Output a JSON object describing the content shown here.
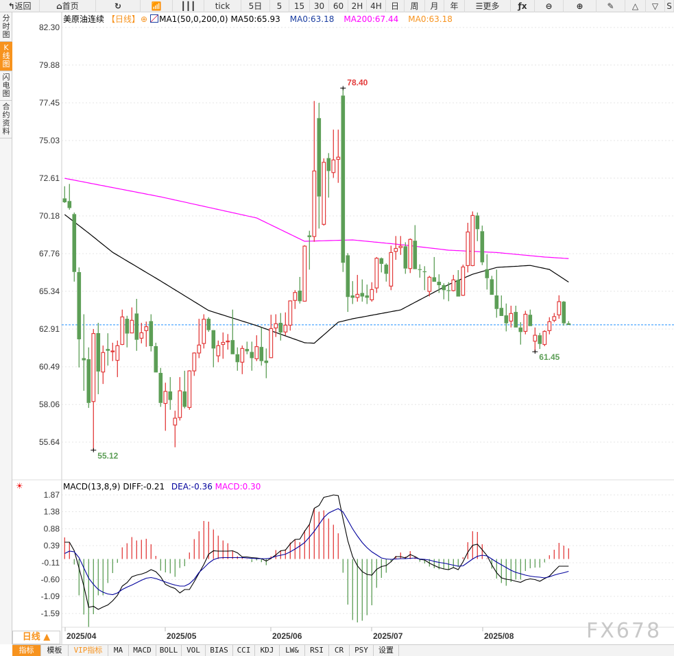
{
  "toolbar": {
    "items": [
      {
        "label": "返回",
        "icon": "back-arrow-icon"
      },
      {
        "label": "首页",
        "icon": "home-icon"
      },
      {
        "label": "",
        "icon": "refresh-icon"
      },
      {
        "label": "",
        "icon": "indicator-chart-icon"
      },
      {
        "label": "",
        "icon": "candlestick-icon"
      },
      {
        "label": "tick"
      },
      {
        "label": "5日"
      },
      {
        "label": "5"
      },
      {
        "label": "15"
      },
      {
        "label": "30"
      },
      {
        "label": "60"
      },
      {
        "label": "2H"
      },
      {
        "label": "4H"
      },
      {
        "label": "日"
      },
      {
        "label": "周"
      },
      {
        "label": "月"
      },
      {
        "label": "年"
      },
      {
        "label": "更多",
        "icon": "menu-icon"
      },
      {
        "label": "",
        "icon": "fx-icon"
      },
      {
        "label": "",
        "icon": "zoom-out-icon"
      },
      {
        "label": "",
        "icon": "zoom-in-icon"
      },
      {
        "label": "",
        "icon": "pen-icon"
      },
      {
        "label": "",
        "icon": "triangle-up-icon"
      },
      {
        "label": "",
        "icon": "triangle-down-icon"
      },
      {
        "label": "S"
      }
    ]
  },
  "sidetabs": [
    {
      "label": "分时图",
      "active": false
    },
    {
      "label": "K线图",
      "active": true
    },
    {
      "label": "闪电图",
      "active": false
    },
    {
      "label": "合约资料",
      "active": false
    }
  ],
  "legend": {
    "symbol": "美原油连续",
    "period": "【日线】",
    "ma_def": "MA1(50,0,200,0)",
    "ma50": "MA50:65.93",
    "ma0a": "MA0:63.18",
    "ma200": "MA200:67.44",
    "ma0b": "MA0:63.18"
  },
  "macd_legend": {
    "name": "MACD(13,8,9)",
    "diff": "DIFF:-0.21",
    "dea": "DEA:-0.36",
    "macd": "MACD:0.30"
  },
  "period_selector": "日线 ▲",
  "bottom_tabs": [
    "指标",
    "模板",
    "VIP指标",
    "MA",
    "MACD",
    "BOLL",
    "VOL",
    "BIAS",
    "CCI",
    "KDJ",
    "LW&",
    "RSI",
    "CR",
    "PSY",
    "设置"
  ],
  "watermark": "FX678",
  "colors": {
    "up": "#e23b3b",
    "down": "#5c9e56",
    "ma50": "#000000",
    "ma200": "#ff00ff",
    "dea": "#00009c",
    "last_price": "#1e90ff",
    "accent": "#f7931e"
  },
  "chart_data": [
    {
      "type": "candlestick",
      "title": "美原油连续",
      "ylim": [
        55.64,
        82.3
      ],
      "y_ticks": [
        "82.30",
        "79.88",
        "77.45",
        "75.03",
        "72.61",
        "70.18",
        "67.76",
        "65.34",
        "62.91",
        "60.49",
        "58.06",
        "55.64"
      ],
      "x_ticks": [
        "2025/04",
        "2025/05",
        "2025/06",
        "2025/07",
        "2025/08"
      ],
      "last_price": 63.18,
      "annotations": {
        "high": "78.40",
        "low": "55.12",
        "recent_low": "61.45"
      },
      "ohlc": [
        [
          71.31,
          72.09,
          71.02,
          71.06
        ],
        [
          71.14,
          72.24,
          70.58,
          70.69
        ],
        [
          70.3,
          70.4,
          65.96,
          66.58
        ],
        [
          66.57,
          66.87,
          60.44,
          62.25
        ],
        [
          61.04,
          63.86,
          58.94,
          60.9
        ],
        [
          60.97,
          61.73,
          57.84,
          58.16
        ],
        [
          58.25,
          62.91,
          55.12,
          62.62
        ],
        [
          62.65,
          63.31,
          58.72,
          60.18
        ],
        [
          60.15,
          61.85,
          59.38,
          61.4
        ],
        [
          61.63,
          62.64,
          60.56,
          61.51
        ],
        [
          61.48,
          62.03,
          60.85,
          61.5
        ],
        [
          60.9,
          62.17,
          59.82,
          61.84
        ],
        [
          61.92,
          64.16,
          61.88,
          63.69
        ],
        [
          63.57,
          63.76,
          61.73,
          62.62
        ],
        [
          62.66,
          64.3,
          62.66,
          63.47
        ],
        [
          63.91,
          64.85,
          61.51,
          62.22
        ],
        [
          62.32,
          63.31,
          61.99,
          62.67
        ],
        [
          62.81,
          63.39,
          61.77,
          63.06
        ],
        [
          63.42,
          63.86,
          61.47,
          61.81
        ],
        [
          61.81,
          62.03,
          60.12,
          60.12
        ],
        [
          60.09,
          60.41,
          57.91,
          58.16
        ],
        [
          58.13,
          59.46,
          56.37,
          58.9
        ],
        [
          58.9,
          59.82,
          57.72,
          58.35
        ],
        [
          56.74,
          57.66,
          55.31,
          57.18
        ],
        [
          57.22,
          59.82,
          57.03,
          58.94
        ],
        [
          58.9,
          60.23,
          57.81,
          57.91
        ],
        [
          57.87,
          60.26,
          57.72,
          60.22
        ],
        [
          60.22,
          61.41,
          59.9,
          61.37
        ],
        [
          61.37,
          63.57,
          61.04,
          61.88
        ],
        [
          61.98,
          63.86,
          61.66,
          63.54
        ],
        [
          63.57,
          63.67,
          62.73,
          62.84
        ],
        [
          62.84,
          62.84,
          60.45,
          61.66
        ],
        [
          61.19,
          62.17,
          60.78,
          61.84
        ],
        [
          61.92,
          62.69,
          61.0,
          62.05
        ],
        [
          62.1,
          62.59,
          61.59,
          62.14
        ],
        [
          62.2,
          64.16,
          61.29,
          61.29
        ],
        [
          61.29,
          61.73,
          60.23,
          60.78
        ],
        [
          60.78,
          61.85,
          60.01,
          61.66
        ],
        [
          61.63,
          62.1,
          61.29,
          61.48
        ],
        [
          61.44,
          62.1,
          60.23,
          61.04
        ],
        [
          61.0,
          62.51,
          60.85,
          61.78
        ],
        [
          61.76,
          63.01,
          60.56,
          60.85
        ],
        [
          60.88,
          61.66,
          59.75,
          60.73
        ],
        [
          61.07,
          63.83,
          61.04,
          62.94
        ],
        [
          62.98,
          63.86,
          62.4,
          63.25
        ],
        [
          63.31,
          63.94,
          62.17,
          62.69
        ],
        [
          62.72,
          63.98,
          62.5,
          63.16
        ],
        [
          63.16,
          64.75,
          62.81,
          64.72
        ],
        [
          64.75,
          65.41,
          64.2,
          65.26
        ],
        [
          65.38,
          66.26,
          64.55,
          64.7
        ],
        [
          64.7,
          68.3,
          64.67,
          68.24
        ],
        [
          68.93,
          69.23,
          66.73,
          68.82
        ],
        [
          68.86,
          77.57,
          68.52,
          73.07
        ],
        [
          76.47,
          77.45,
          69.37,
          71.43
        ],
        [
          69.64,
          73.88,
          69.56,
          73.63
        ],
        [
          73.9,
          74.22,
          71.36,
          73.07
        ],
        [
          72.97,
          75.73,
          72.63,
          73.78
        ],
        [
          73.82,
          75.73,
          72.31,
          73.96
        ],
        [
          77.92,
          78.4,
          66.58,
          67.17
        ],
        [
          67.65,
          67.79,
          64.01,
          64.97
        ],
        [
          65.07,
          65.99,
          64.52,
          64.92
        ],
        [
          64.94,
          66.39,
          64.67,
          65.14
        ],
        [
          65.23,
          66.1,
          64.67,
          65.0
        ],
        [
          65.07,
          65.77,
          64.52,
          64.92
        ],
        [
          64.79,
          65.92,
          64.67,
          65.45
        ],
        [
          65.55,
          67.54,
          65.23,
          67.46
        ],
        [
          67.46,
          67.51,
          66.55,
          67.1
        ],
        [
          67.05,
          67.13,
          65.96,
          66.46
        ],
        [
          65.67,
          68.27,
          65.41,
          67.83
        ],
        [
          67.9,
          68.89,
          67.36,
          68.09
        ],
        [
          68.15,
          68.89,
          67.68,
          68.24
        ],
        [
          68.23,
          68.49,
          66.46,
          66.8
        ],
        [
          66.8,
          68.74,
          66.51,
          68.67
        ],
        [
          68.59,
          69.59,
          66.76,
          66.76
        ],
        [
          66.76,
          67.07,
          66.21,
          66.72
        ],
        [
          66.62,
          66.95,
          65.41,
          66.6
        ],
        [
          65.33,
          66.33,
          65.01,
          66.24
        ],
        [
          66.24,
          67.54,
          65.95,
          65.95
        ],
        [
          65.95,
          66.43,
          65.23,
          65.73
        ],
        [
          65.73,
          65.85,
          64.82,
          65.41
        ],
        [
          65.41,
          65.92,
          64.7,
          65.38
        ],
        [
          65.38,
          66.39,
          65.33,
          66.07
        ],
        [
          66.07,
          66.7,
          65.0,
          65.0
        ],
        [
          65.08,
          67.05,
          65.04,
          66.9
        ],
        [
          66.99,
          69.74,
          66.55,
          69.15
        ],
        [
          66.99,
          70.47,
          66.95,
          70.21
        ],
        [
          70.21,
          70.4,
          68.56,
          69.33
        ],
        [
          69.2,
          69.56,
          67.02,
          67.2
        ],
        [
          66.76,
          67.71,
          65.45,
          66.18
        ],
        [
          66.11,
          66.33,
          65.11,
          65.11
        ],
        [
          65.07,
          66.73,
          63.64,
          64.2
        ],
        [
          64.27,
          65.07,
          63.75,
          63.75
        ],
        [
          63.79,
          64.55,
          62.76,
          63.28
        ],
        [
          63.42,
          64.41,
          63.01,
          63.91
        ],
        [
          64.01,
          64.41,
          63.01,
          63.01
        ],
        [
          63.01,
          63.35,
          61.91,
          62.72
        ],
        [
          62.76,
          64.08,
          62.57,
          63.86
        ],
        [
          63.83,
          64.16,
          63.1,
          63.1
        ],
        [
          62.13,
          63.01,
          61.45,
          62.51
        ],
        [
          62.51,
          62.66,
          61.63,
          61.95
        ],
        [
          61.92,
          62.83,
          61.81,
          62.76
        ],
        [
          62.81,
          63.67,
          62.57,
          63.38
        ],
        [
          63.47,
          63.94,
          63.35,
          63.71
        ],
        [
          63.82,
          65.08,
          63.57,
          64.67
        ],
        [
          64.67,
          64.71,
          63.13,
          63.28
        ],
        [
          63.28,
          63.42,
          63.17,
          63.17
        ]
      ],
      "ma_series": [
        {
          "name": "MA50",
          "points": [
            [
              0,
              70.27
            ],
            [
              5,
              69.08
            ],
            [
              10,
              67.84
            ],
            [
              20,
              66.0
            ],
            [
              30,
              64.1
            ],
            [
              40,
              63.13
            ],
            [
              50,
              62.03
            ],
            [
              52,
              62.0
            ],
            [
              57,
              63.35
            ],
            [
              60,
              63.57
            ],
            [
              70,
              64.14
            ],
            [
              80,
              65.77
            ],
            [
              85,
              66.43
            ],
            [
              90,
              66.87
            ],
            [
              97,
              67.0
            ],
            [
              101,
              66.74
            ],
            [
              105,
              65.93
            ]
          ]
        },
        {
          "name": "MA200",
          "points": [
            [
              0,
              72.6
            ],
            [
              20,
              71.41
            ],
            [
              40,
              70.05
            ],
            [
              50,
              68.55
            ],
            [
              60,
              68.64
            ],
            [
              70,
              68.34
            ],
            [
              80,
              67.98
            ],
            [
              90,
              67.83
            ],
            [
              100,
              67.54
            ],
            [
              105,
              67.44
            ]
          ]
        }
      ]
    },
    {
      "type": "macd",
      "title": "MACD(13,8,9)",
      "ylim": [
        -1.59,
        1.87
      ],
      "y_ticks": [
        "1.87",
        "1.38",
        "0.88",
        "0.39",
        "-0.11",
        "-0.60",
        "-1.09",
        "-1.59"
      ],
      "diff": [
        0.49,
        0.49,
        0.24,
        -0.27,
        -0.79,
        -1.41,
        -1.38,
        -1.47,
        -1.4,
        -1.34,
        -1.22,
        -1.06,
        -0.79,
        -0.69,
        -0.52,
        -0.47,
        -0.44,
        -0.39,
        -0.31,
        -0.37,
        -0.52,
        -0.74,
        -0.81,
        -0.86,
        -0.99,
        -0.89,
        -0.89,
        -0.66,
        -0.41,
        -0.16,
        0.14,
        0.24,
        0.23,
        0.23,
        0.23,
        0.24,
        0.18,
        0.06,
        0.06,
        0.04,
        0.03,
        0.01,
        -0.06,
        0.02,
        0.12,
        0.24,
        0.26,
        0.44,
        0.57,
        0.58,
        0.81,
        1.01,
        1.48,
        1.56,
        1.8,
        1.83,
        1.87,
        1.85,
        1.17,
        0.53,
        0.07,
        -0.2,
        -0.37,
        -0.45,
        -0.47,
        -0.3,
        -0.22,
        -0.19,
        -0.08,
        0.07,
        0.07,
        0.03,
        0.13,
        0.07,
        -0.01,
        -0.03,
        -0.12,
        -0.19,
        -0.25,
        -0.29,
        -0.31,
        -0.25,
        -0.31,
        -0.08,
        0.2,
        0.4,
        0.43,
        0.27,
        0.1,
        -0.17,
        -0.4,
        -0.55,
        -0.59,
        -0.61,
        -0.65,
        -0.68,
        -0.61,
        -0.58,
        -0.6,
        -0.65,
        -0.57,
        -0.5,
        -0.35,
        -0.21,
        -0.21,
        -0.21
      ],
      "dea": [
        0.16,
        0.23,
        0.21,
        0.04,
        -0.26,
        -0.56,
        -0.74,
        -0.89,
        -0.97,
        -1.02,
        -1.04,
        -0.99,
        -0.89,
        -0.82,
        -0.76,
        -0.69,
        -0.62,
        -0.56,
        -0.54,
        -0.57,
        -0.62,
        -0.67,
        -0.72,
        -0.76,
        -0.79,
        -0.79,
        -0.72,
        -0.59,
        -0.39,
        -0.26,
        -0.12,
        -0.02,
        0.03,
        0.04,
        0.04,
        0.04,
        0.04,
        0.04,
        0.03,
        0.02,
        0.01,
        0.01,
        0.01,
        0.03,
        0.08,
        0.11,
        0.14,
        0.21,
        0.29,
        0.38,
        0.48,
        0.64,
        0.81,
        1.01,
        1.21,
        1.34,
        1.41,
        1.47,
        1.37,
        1.13,
        0.88,
        0.67,
        0.48,
        0.33,
        0.21,
        0.12,
        0.03,
        0.0,
        -0.01,
        0.0,
        0.01,
        0.01,
        0.02,
        0.03,
        0.0,
        -0.01,
        -0.03,
        -0.07,
        -0.1,
        -0.12,
        -0.15,
        -0.18,
        -0.21,
        -0.2,
        -0.1,
        0.0,
        0.08,
        0.11,
        0.09,
        0.0,
        -0.09,
        -0.17,
        -0.25,
        -0.33,
        -0.39,
        -0.43,
        -0.47,
        -0.5,
        -0.52,
        -0.53,
        -0.55,
        -0.52,
        -0.47,
        -0.43,
        -0.4,
        -0.36
      ],
      "histogram": [
        0.63,
        0.48,
        -0.16,
        -1.06,
        -1.62,
        -1.98,
        -1.61,
        -1.06,
        -1.06,
        -0.7,
        -0.41,
        -0.11,
        0.34,
        0.46,
        0.64,
        0.54,
        0.56,
        0.59,
        0.43,
        0.09,
        -0.34,
        -0.39,
        -0.42,
        -0.52,
        -0.26,
        -0.21,
        0.19,
        0.58,
        0.81,
        1.11,
        1.09,
        0.86,
        0.68,
        0.54,
        0.46,
        0.24,
        0.08,
        0.04,
        0.01,
        -0.09,
        -0.04,
        -0.09,
        -0.18,
        0.08,
        0.26,
        0.24,
        0.28,
        0.48,
        0.56,
        0.49,
        0.84,
        1.01,
        1.48,
        1.38,
        1.42,
        1.18,
        1.0,
        0.75,
        -0.4,
        -1.33,
        -1.78,
        -1.85,
        -1.8,
        -1.64,
        -1.35,
        -0.84,
        -0.55,
        -0.4,
        -0.07,
        0.09,
        0.19,
        0.07,
        0.23,
        0.07,
        -0.08,
        -0.13,
        -0.22,
        -0.27,
        -0.3,
        -0.3,
        -0.3,
        -0.25,
        -0.23,
        0.05,
        0.49,
        0.81,
        0.79,
        0.43,
        0.02,
        -0.28,
        -0.57,
        -0.7,
        -0.78,
        -0.67,
        -0.6,
        -0.6,
        -0.35,
        -0.27,
        -0.25,
        -0.25,
        -0.1,
        0.11,
        0.27,
        0.47,
        0.39,
        0.31
      ]
    }
  ]
}
